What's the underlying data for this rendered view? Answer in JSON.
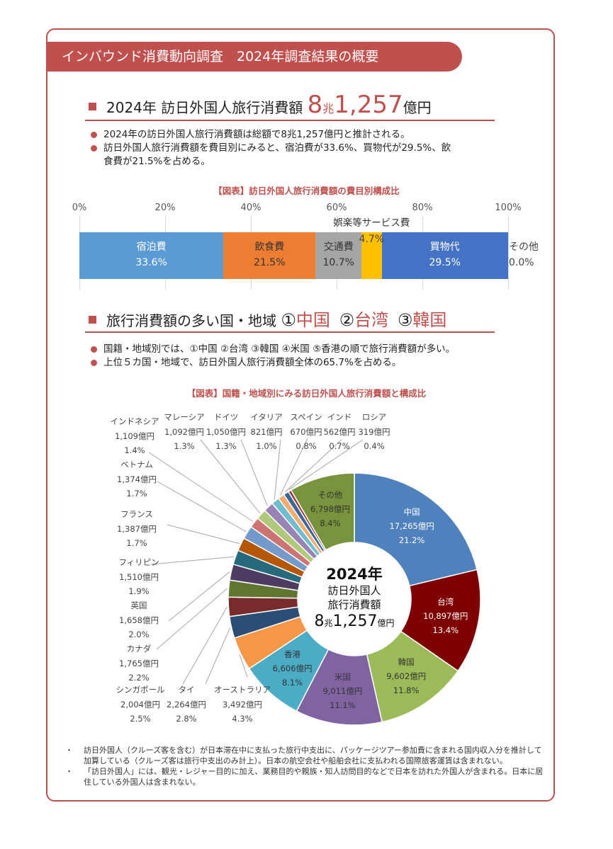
{
  "banner": {
    "title": "インバウンド消費動向調査　2024年調査結果の概要"
  },
  "section1": {
    "heading_prefix": "2024年 訪日外国人旅行消費額 ",
    "heading_num1": "8",
    "heading_unit1": "兆",
    "heading_num2": "1,257",
    "heading_unit2": "億円",
    "bullets": [
      "2024年の訪日外国人旅行消費額は総額で8兆1,257億円と推計される。",
      "訪日外国人旅行消費額を費目別にみると、宿泊費が33.6%、買物代が29.5%、飲",
      "食費が21.5%を占める。"
    ]
  },
  "section2": {
    "heading_prefix": "旅行消費額の多い国・地域 ",
    "rank1_mark": "①",
    "rank1": "中国",
    "rank2_mark": "②",
    "rank2": "台湾",
    "rank3_mark": "③",
    "rank3": "韓国",
    "bullets": [
      "国籍・地域別では、①中国 ②台湾 ③韓国 ④米国 ⑤香港の順で旅行消費額が多い。",
      "上位５カ国・地域で、訪日外国人旅行消費額全体の65.7%を占める。"
    ]
  },
  "donut_center": {
    "year": "2024年",
    "line1": "訪日外国人",
    "line2": "旅行消費額",
    "num1": "8",
    "unit1": "兆",
    "num2": "1,257",
    "unit2": "億円"
  },
  "footnotes": [
    "訪日外国人（クルーズ客を含む）が日本滞在中に支払った旅行中支出に、パッケージツアー参加費に含まれる国内収入分を推計して加算している（クルーズ客は旅行中支出のみ計上）。日本の航空会社や船舶会社に支払われる国際旅客運賃は含まれない。",
    "「訪日外国人」には、観光・レジャー目的に加え、業務目的や親族・知人訪問目的などで日本を訪れた外国人が含まれる。日本に居住している外国人は含まれない。"
  ],
  "colors": {
    "accent": "#c0504d"
  },
  "chart_data": [
    {
      "type": "bar",
      "orientation": "horizontal-stacked-100",
      "title": "【図表】訪日外国人旅行消費額の費目別構成比",
      "xticks": [
        "0%",
        "20%",
        "40%",
        "60%",
        "80%",
        "100%"
      ],
      "xlim": [
        0,
        100
      ],
      "grid": true,
      "categories": [
        "宿泊費",
        "飲食費",
        "交通費",
        "娯楽等サービス費",
        "買物代",
        "その他"
      ],
      "values": [
        33.6,
        21.5,
        10.7,
        4.7,
        29.5,
        0.0
      ],
      "labels": [
        "33.6%",
        "21.5%",
        "10.7%",
        "4.7%",
        "29.5%",
        "0.0%"
      ],
      "colors": [
        "#5b9bd5",
        "#ed7d31",
        "#a5a5a5",
        "#ffc000",
        "#4472c4",
        "#70ad47"
      ]
    },
    {
      "type": "pie",
      "variant": "donut",
      "title": "【図表】国籍・地域別にみる訪日外国人旅行消費額と構成比",
      "center_text": "2024年 訪日外国人 旅行消費額 8兆1,257億円",
      "slices": [
        {
          "name": "中国",
          "amount": "17,265億円",
          "value": 17265,
          "pct": 21.2,
          "color": "#4f81bd"
        },
        {
          "name": "台湾",
          "amount": "10,897億円",
          "value": 10897,
          "pct": 13.4,
          "color": "#7f0000"
        },
        {
          "name": "韓国",
          "amount": "9,602億円",
          "value": 9602,
          "pct": 11.8,
          "color": "#9bbb59"
        },
        {
          "name": "米国",
          "amount": "9,011億円",
          "value": 9011,
          "pct": 11.1,
          "color": "#8064a2"
        },
        {
          "name": "香港",
          "amount": "6,606億円",
          "value": 6606,
          "pct": 8.1,
          "color": "#4bacc6"
        },
        {
          "name": "オーストラリア",
          "amount": "3,492億円",
          "value": 3492,
          "pct": 4.3,
          "color": "#f79646"
        },
        {
          "name": "タイ",
          "amount": "2,264億円",
          "value": 2264,
          "pct": 2.8,
          "color": "#2c4d75"
        },
        {
          "name": "シンガポール",
          "amount": "2,004億円",
          "value": 2004,
          "pct": 2.5,
          "color": "#772c2a"
        },
        {
          "name": "カナダ",
          "amount": "1,765億円",
          "value": 1765,
          "pct": 2.2,
          "color": "#5f7530"
        },
        {
          "name": "英国",
          "amount": "1,658億円",
          "value": 1658,
          "pct": 2.0,
          "color": "#4d3b62"
        },
        {
          "name": "フィリピン",
          "amount": "1,510億円",
          "value": 1510,
          "pct": 1.9,
          "color": "#276a7c"
        },
        {
          "name": "フランス",
          "amount": "1,387億円",
          "value": 1387,
          "pct": 1.7,
          "color": "#b65708"
        },
        {
          "name": "ベトナム",
          "amount": "1,374億円",
          "value": 1374,
          "pct": 1.7,
          "color": "#729aca"
        },
        {
          "name": "インドネシア",
          "amount": "1,109億円",
          "value": 1109,
          "pct": 1.4,
          "color": "#cd7371"
        },
        {
          "name": "マレーシア",
          "amount": "1,092億円",
          "value": 1092,
          "pct": 1.3,
          "color": "#afc97a"
        },
        {
          "name": "ドイツ",
          "amount": "1,050億円",
          "value": 1050,
          "pct": 1.3,
          "color": "#9983b5"
        },
        {
          "name": "イタリア",
          "amount": "821億円",
          "value": 821,
          "pct": 1.0,
          "color": "#6fbdd1"
        },
        {
          "name": "スペイン",
          "amount": "670億円",
          "value": 670,
          "pct": 0.8,
          "color": "#f9ab6b"
        },
        {
          "name": "インド",
          "amount": "562億円",
          "value": 562,
          "pct": 0.7,
          "color": "#3a679c"
        },
        {
          "name": "ロシア",
          "amount": "319億円",
          "value": 319,
          "pct": 0.4,
          "color": "#9e3a38"
        },
        {
          "name": "その他",
          "amount": "6,798億円",
          "value": 6798,
          "pct": 8.4,
          "color": "#77933c"
        }
      ]
    }
  ]
}
